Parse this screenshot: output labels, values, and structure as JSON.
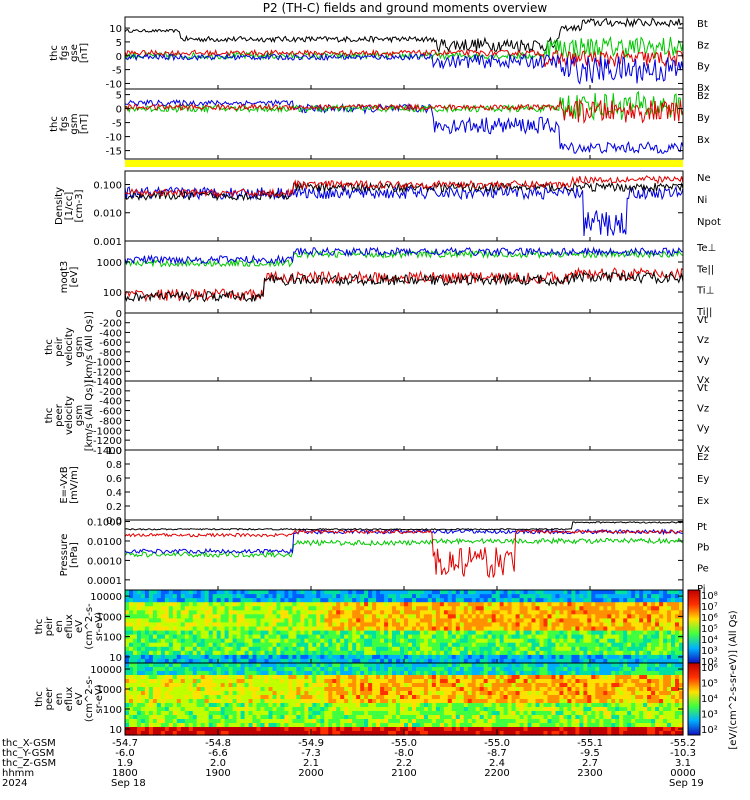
{
  "title": "P2 (TH-C) fields and ground moments overview",
  "colors": {
    "black": "#000000",
    "red": "#e00000",
    "green": "#00c800",
    "blue": "#0000e0",
    "yellow": "#ffff00"
  },
  "chart_data": [
    {
      "type": "line",
      "ylabel": [
        "thc",
        "fgs",
        "gse",
        "[nT]"
      ],
      "ylim": [
        -12,
        14
      ],
      "ticks": [
        "10",
        "5",
        "0",
        "-5",
        "-10"
      ],
      "tick_values": [
        10,
        5,
        0,
        -5,
        -10
      ],
      "legend": [
        {
          "name": "Bt",
          "color": "#000000"
        },
        {
          "name": "Bz",
          "color": "#e00000"
        },
        {
          "name": "By",
          "color": "#00c800"
        },
        {
          "name": "Bx",
          "color": "#0000e0"
        }
      ]
    },
    {
      "type": "line",
      "ylabel": [
        "thc",
        "fgs",
        "gsm",
        "[nT]"
      ],
      "ylim": [
        -18,
        7
      ],
      "ticks": [
        "5",
        "0",
        "-5",
        "-10",
        "-15"
      ],
      "tick_values": [
        5,
        0,
        -5,
        -10,
        -15
      ],
      "legend": [
        {
          "name": "Bz",
          "color": "#e00000"
        },
        {
          "name": "By",
          "color": "#00c800"
        },
        {
          "name": "Bx",
          "color": "#0000e0"
        }
      ]
    },
    {
      "type": "line",
      "ylabel": [
        "Density",
        "[1/cc]",
        "[cm-3]"
      ],
      "ylim": [
        0.001,
        0.3
      ],
      "ticks": [
        "0.100",
        "0.010",
        "0.001"
      ],
      "tick_values": [
        0.1,
        0.01,
        0.001
      ],
      "legend": [
        {
          "name": "Ne",
          "color": "#e00000"
        },
        {
          "name": "Ni",
          "color": "#000000"
        },
        {
          "name": "Npot",
          "color": "#0000e0"
        }
      ]
    },
    {
      "type": "line",
      "ylabel": [
        "moqt3",
        "[eV]"
      ],
      "ylim": [
        20,
        5000
      ],
      "ticks": [
        "1000",
        "100"
      ],
      "tick_values": [
        1000,
        100
      ],
      "legend": [
        {
          "name": "Te⊥",
          "color": "#e00000"
        },
        {
          "name": "Te||",
          "color": "#000000"
        },
        {
          "name": "Ti⊥",
          "color": "#0000e0"
        },
        {
          "name": "Ti||",
          "color": "#00c800"
        }
      ]
    },
    {
      "type": "line",
      "ylabel": [
        "thc",
        "peir",
        "velocity",
        "gsm",
        "[km/s (All Qs)]"
      ],
      "ylim": [
        -1400,
        0
      ],
      "ticks": [
        "0",
        "-200",
        "-400",
        "-600",
        "-800",
        "-1000",
        "-1200",
        "-1400"
      ],
      "tick_values": [
        0,
        -200,
        -400,
        -600,
        -800,
        -1000,
        -1200,
        -1400
      ],
      "legend": [
        {
          "name": "Vt",
          "color": "#000000"
        },
        {
          "name": "Vz",
          "color": "#e00000"
        },
        {
          "name": "Vy",
          "color": "#00c800"
        },
        {
          "name": "Vx",
          "color": "#0000e0"
        }
      ]
    },
    {
      "type": "line",
      "ylabel": [
        "thc",
        "peer",
        "velocity",
        "gsm",
        "[km/s (All Qs)]"
      ],
      "ylim": [
        -1400,
        0
      ],
      "ticks": [
        "0",
        "-200",
        "-400",
        "-600",
        "-800",
        "-1000",
        "-1200",
        "-1400"
      ],
      "tick_values": [
        0,
        -200,
        -400,
        -600,
        -800,
        -1000,
        -1200,
        -1400
      ],
      "legend": [
        {
          "name": "Vt",
          "color": "#000000"
        },
        {
          "name": "Vz",
          "color": "#e00000"
        },
        {
          "name": "Vy",
          "color": "#00c800"
        },
        {
          "name": "Vx",
          "color": "#0000e0"
        }
      ]
    },
    {
      "type": "line",
      "ylabel": [
        "E=-VxB",
        "[mV/m]"
      ],
      "ylim": [
        0,
        1
      ],
      "ticks": [
        "1.0",
        "0.8",
        "0.6",
        "0.4",
        "0.2",
        "0.0"
      ],
      "tick_values": [
        1.0,
        0.8,
        0.6,
        0.4,
        0.2,
        0.0
      ],
      "legend": [
        {
          "name": "Ez",
          "color": "#e00000"
        },
        {
          "name": "Ey",
          "color": "#00c800"
        },
        {
          "name": "Ex",
          "color": "#0000e0"
        }
      ]
    },
    {
      "type": "line",
      "ylabel": [
        "Pressure",
        "[nPa]"
      ],
      "ylim": [
        3e-05,
        0.12
      ],
      "ticks": [
        "0.1000",
        "0.0100",
        "0.0010",
        "0.0001"
      ],
      "tick_values": [
        0.1,
        0.01,
        0.001,
        0.0001
      ],
      "legend": [
        {
          "name": "Pt",
          "color": "#000000"
        },
        {
          "name": "Pb",
          "color": "#e00000"
        },
        {
          "name": "Pe",
          "color": "#00c800"
        },
        {
          "name": "Pi",
          "color": "#0000e0"
        }
      ]
    },
    {
      "type": "heatmap",
      "ylabel": [
        "thc",
        "peir",
        "en",
        "eflux",
        "eV",
        "(cm^2-s-",
        "sr-eV)"
      ],
      "ylim": [
        5,
        20000
      ],
      "ticks": [
        "10000",
        "1000",
        "100",
        "10"
      ],
      "tick_values": [
        10000,
        1000,
        100,
        10
      ]
    },
    {
      "type": "heatmap",
      "ylabel": [
        "thc",
        "peer",
        "en",
        "eflux",
        "eV",
        "(cm^2-s-",
        "sr-eV)"
      ],
      "ylim": [
        5,
        20000
      ],
      "ticks": [
        "10000",
        "1000",
        "100",
        "10"
      ],
      "tick_values": [
        10000,
        1000,
        100,
        10
      ]
    }
  ],
  "colorbar": {
    "label": "[eV/(cm^2-s-sr-eV)]  (All Qs)",
    "ticks_top": [
      "10⁸",
      "10⁷",
      "10⁶",
      "10⁵",
      "10⁴",
      "10³",
      "10²"
    ],
    "ticks_bottom": [
      "10⁶",
      "10⁵",
      "10⁴",
      "10³",
      "10²"
    ]
  },
  "x_axis": {
    "rows": [
      {
        "name": "thc_X-GSM",
        "values": [
          "-54.7",
          "-54.8",
          "-54.9",
          "-55.0",
          "-55.0",
          "-55.1",
          "-55.2"
        ]
      },
      {
        "name": "thc_Y-GSM",
        "values": [
          "-6.0",
          "-6.6",
          "-7.3",
          "-8.0",
          "-8.7",
          "-9.5",
          "-10.3"
        ]
      },
      {
        "name": "thc_Z-GSM",
        "values": [
          "1.9",
          "2.0",
          "2.1",
          "2.2",
          "2.4",
          "2.7",
          "3.1"
        ]
      },
      {
        "name": "hhmm",
        "values": [
          "1800",
          "1900",
          "2000",
          "2100",
          "2200",
          "2300",
          "0000"
        ]
      }
    ],
    "year": "2024",
    "date_start": "Sep 18",
    "date_end": "Sep 19"
  }
}
